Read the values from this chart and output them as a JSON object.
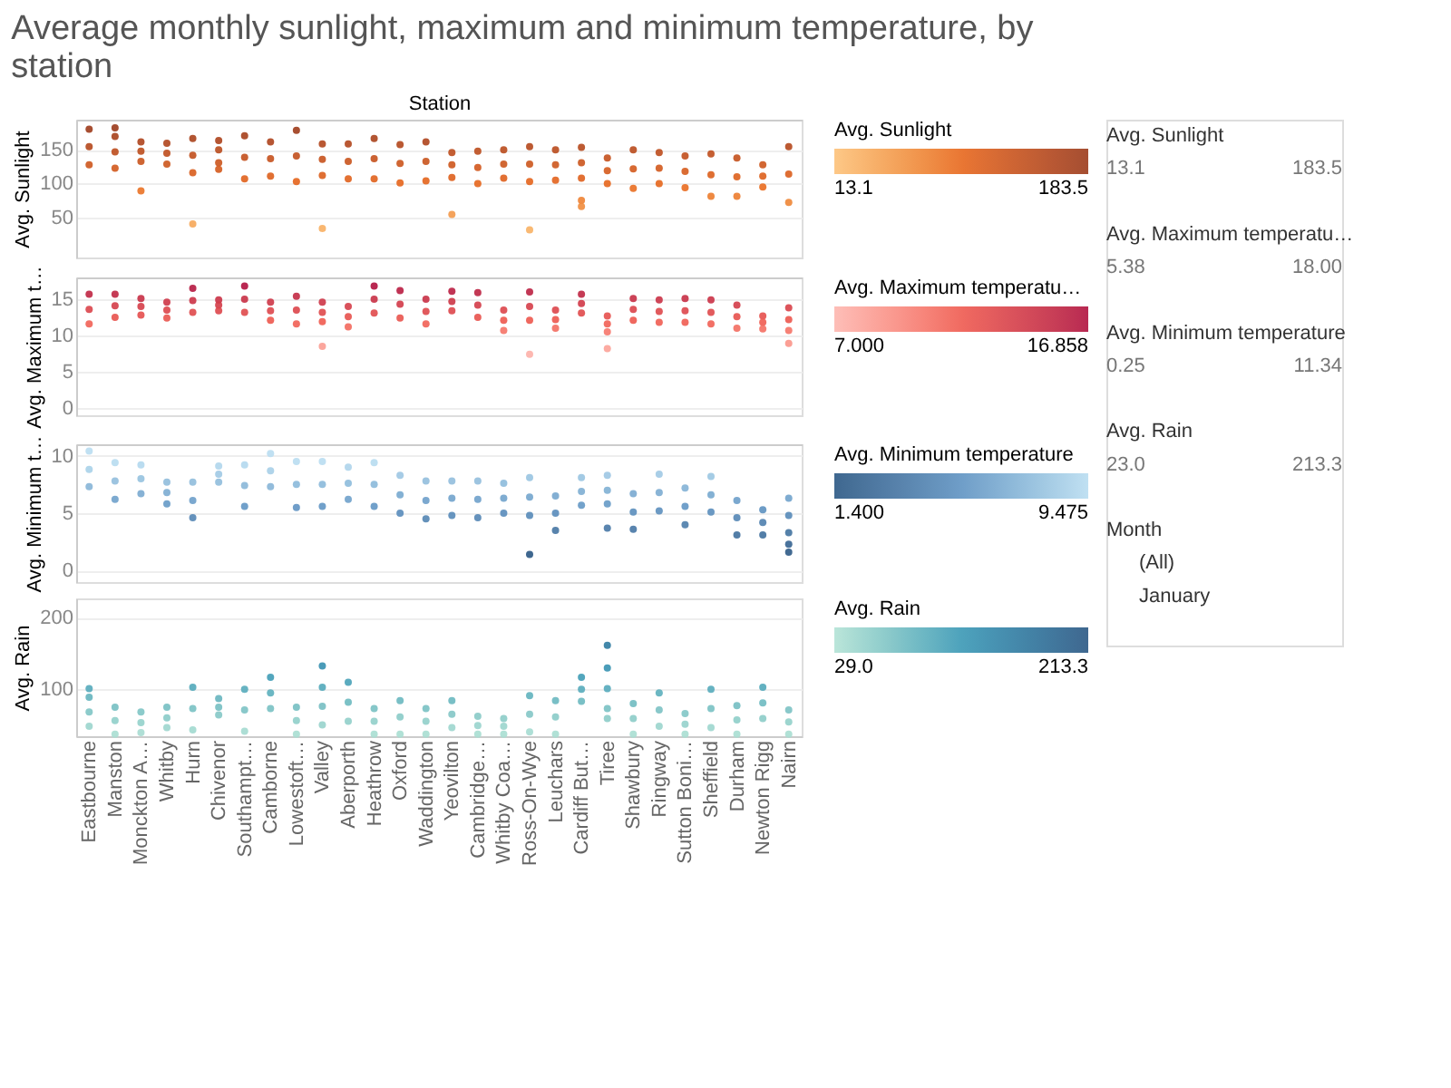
{
  "chart_data": [
    {
      "type": "scatter",
      "title": "Average monthly sunlight, maximum and minimum temperature, by station",
      "xlabel": "Station",
      "ylabel": "Avg. Sunlight",
      "clabel": "Avg. Sunlight",
      "tick_labels": "y",
      "grid": "y",
      "marker": "circle",
      "categories": [
        "Eastbourne",
        "Manston",
        "Monckton A…",
        "Whitby",
        "Hurn",
        "Chivenor",
        "Southampt…",
        "Camborne",
        "Lowestoft…",
        "Valley",
        "Aberporth",
        "Heathrow",
        "Oxford",
        "Waddington",
        "Yeovilton",
        "Cambridge…",
        "Whitby Coa…",
        "Ross-On-Wye",
        "Leuchars",
        "Cardiff But…",
        "Tiree",
        "Shawbury",
        "Ringway",
        "Sutton Boni…",
        "Sheffield",
        "Durham",
        "Newton Rigg",
        "Nairn"
      ],
      "series": [
        {
          "type": "scatter",
          "x": [
            "Eastbourne",
            "Eastbourne",
            "Eastbourne",
            "Manston",
            "Manston",
            "Manston",
            "Manston",
            "Monckton A…",
            "Monckton A…",
            "Monckton A…",
            "Monckton A…",
            "Whitby",
            "Whitby",
            "Whitby",
            "Hurn",
            "Hurn",
            "Hurn",
            "Hurn",
            "Chivenor",
            "Chivenor",
            "Chivenor",
            "Chivenor",
            "Southampt…",
            "Southampt…",
            "Southampt…",
            "Camborne",
            "Camborne",
            "Camborne",
            "Lowestoft…",
            "Lowestoft…",
            "Lowestoft…",
            "Valley",
            "Valley",
            "Valley",
            "Valley",
            "Aberporth",
            "Aberporth",
            "Aberporth",
            "Heathrow",
            "Heathrow",
            "Heathrow",
            "Oxford",
            "Oxford",
            "Oxford",
            "Waddington",
            "Waddington",
            "Waddington",
            "Yeovilton",
            "Yeovilton",
            "Yeovilton",
            "Yeovilton",
            "Cambridge…",
            "Cambridge…",
            "Cambridge…",
            "Whitby Coa…",
            "Whitby Coa…",
            "Whitby Coa…",
            "Ross-On-Wye",
            "Ross-On-Wye",
            "Ross-On-Wye",
            "Ross-On-Wye",
            "Leuchars",
            "Leuchars",
            "Leuchars",
            "Cardiff But…",
            "Cardiff But…",
            "Cardiff But…",
            "Cardiff But…",
            "Cardiff But…",
            "Tiree",
            "Tiree",
            "Tiree",
            "Shawbury",
            "Shawbury",
            "Shawbury",
            "Ringway",
            "Ringway",
            "Ringway",
            "Sutton Boni…",
            "Sutton Boni…",
            "Sutton Boni…",
            "Sheffield",
            "Sheffield",
            "Sheffield",
            "Durham",
            "Durham",
            "Durham",
            "Newton Rigg",
            "Newton Rigg",
            "Newton Rigg",
            "Nairn",
            "Nairn",
            "Nairn"
          ],
          "values": [
            181,
            155,
            128,
            183,
            170,
            147,
            123,
            162,
            148,
            133,
            89,
            160,
            145,
            129,
            167,
            142,
            116,
            40,
            164,
            150,
            131,
            121,
            171,
            139,
            107,
            162,
            137,
            111,
            179,
            141,
            103,
            159,
            136,
            112,
            33,
            159,
            133,
            107,
            167,
            137,
            107,
            158,
            130,
            101,
            162,
            133,
            104,
            146,
            128,
            109,
            54,
            148,
            124,
            100,
            150,
            129,
            108,
            155,
            129,
            103,
            31,
            150,
            128,
            105,
            154,
            131,
            108,
            75,
            66,
            138,
            119,
            100,
            150,
            122,
            93,
            146,
            123,
            100,
            141,
            118,
            94,
            144,
            113,
            81,
            138,
            110,
            81,
            128,
            111,
            95,
            155,
            114,
            72
          ]
        }
      ],
      "ylim": [
        -10,
        195
      ],
      "yticks": [
        50,
        100,
        150
      ],
      "clim": [
        13.1,
        183.5
      ],
      "cticks": [
        13.1,
        183.5
      ]
    },
    {
      "type": "scatter",
      "ylabel": "Avg. Maximum t…",
      "clabel": "Avg. Maximum temperatu…",
      "tick_labels": "y",
      "grid": "y",
      "marker": "circle",
      "categories": [
        "Eastbourne",
        "Manston",
        "Monckton A…",
        "Whitby",
        "Hurn",
        "Chivenor",
        "Southampt…",
        "Camborne",
        "Lowestoft…",
        "Valley",
        "Aberporth",
        "Heathrow",
        "Oxford",
        "Waddington",
        "Yeovilton",
        "Cambridge…",
        "Whitby Coa…",
        "Ross-On-Wye",
        "Leuchars",
        "Cardiff But…",
        "Tiree",
        "Shawbury",
        "Ringway",
        "Sutton Boni…",
        "Sheffield",
        "Durham",
        "Newton Rigg",
        "Nairn"
      ],
      "series": [
        {
          "type": "scatter",
          "x": [
            "Eastbourne",
            "Eastbourne",
            "Eastbourne",
            "Manston",
            "Manston",
            "Manston",
            "Monckton A…",
            "Monckton A…",
            "Monckton A…",
            "Whitby",
            "Whitby",
            "Whitby",
            "Hurn",
            "Hurn",
            "Hurn",
            "Chivenor",
            "Chivenor",
            "Chivenor",
            "Southampt…",
            "Southampt…",
            "Southampt…",
            "Camborne",
            "Camborne",
            "Camborne",
            "Lowestoft…",
            "Lowestoft…",
            "Lowestoft…",
            "Valley",
            "Valley",
            "Valley",
            "Valley",
            "Aberporth",
            "Aberporth",
            "Aberporth",
            "Heathrow",
            "Heathrow",
            "Heathrow",
            "Oxford",
            "Oxford",
            "Oxford",
            "Waddington",
            "Waddington",
            "Waddington",
            "Yeovilton",
            "Yeovilton",
            "Yeovilton",
            "Cambridge…",
            "Cambridge…",
            "Cambridge…",
            "Whitby Coa…",
            "Whitby Coa…",
            "Whitby Coa…",
            "Ross-On-Wye",
            "Ross-On-Wye",
            "Ross-On-Wye",
            "Ross-On-Wye",
            "Leuchars",
            "Leuchars",
            "Leuchars",
            "Cardiff But…",
            "Cardiff But…",
            "Cardiff But…",
            "Tiree",
            "Tiree",
            "Tiree",
            "Tiree",
            "Shawbury",
            "Shawbury",
            "Shawbury",
            "Ringway",
            "Ringway",
            "Ringway",
            "Sutton Boni…",
            "Sutton Boni…",
            "Sutton Boni…",
            "Sheffield",
            "Sheffield",
            "Sheffield",
            "Durham",
            "Durham",
            "Durham",
            "Newton Rigg",
            "Newton Rigg",
            "Newton Rigg",
            "Nairn",
            "Nairn",
            "Nairn",
            "Nairn"
          ],
          "values": [
            15.7,
            13.6,
            11.6,
            15.7,
            14.1,
            12.5,
            15.1,
            14.0,
            12.8,
            14.6,
            13.5,
            12.4,
            16.5,
            14.8,
            13.2,
            14.9,
            14.2,
            13.4,
            16.8,
            15.0,
            13.2,
            14.6,
            13.4,
            12.1,
            15.4,
            13.5,
            11.6,
            14.6,
            13.2,
            11.9,
            8.5,
            14.0,
            12.6,
            11.2,
            16.8,
            15.0,
            13.1,
            16.2,
            14.3,
            12.4,
            15.0,
            13.3,
            11.6,
            16.1,
            14.7,
            13.4,
            15.9,
            14.2,
            12.5,
            13.5,
            12.1,
            10.7,
            16.0,
            14.0,
            12.1,
            7.4,
            13.5,
            12.2,
            11.0,
            15.7,
            14.4,
            13.1,
            12.7,
            11.6,
            10.5,
            8.2,
            15.1,
            13.6,
            12.1,
            14.9,
            13.3,
            11.8,
            15.1,
            13.4,
            11.8,
            14.9,
            13.2,
            11.6,
            14.2,
            12.6,
            11.0,
            12.7,
            11.8,
            10.9,
            13.8,
            12.2,
            10.7,
            8.9
          ]
        }
      ],
      "ylim": [
        -1,
        18
      ],
      "yticks": [
        0,
        5,
        10,
        15
      ],
      "clim": [
        7,
        16.858
      ],
      "cticks": [
        {
          "value": 7,
          "label": "7.000"
        },
        {
          "value": 16.858,
          "label": "16.858"
        }
      ]
    },
    {
      "type": "scatter",
      "ylabel": "Avg. Minimum t…",
      "clabel": "Avg. Minimum temperature",
      "tick_labels": "y",
      "grid": "y",
      "marker": "circle",
      "categories": [
        "Eastbourne",
        "Manston",
        "Monckton A…",
        "Whitby",
        "Hurn",
        "Chivenor",
        "Southampt…",
        "Camborne",
        "Lowestoft…",
        "Valley",
        "Aberporth",
        "Heathrow",
        "Oxford",
        "Waddington",
        "Yeovilton",
        "Cambridge…",
        "Whitby Coa…",
        "Ross-On-Wye",
        "Leuchars",
        "Cardiff But…",
        "Tiree",
        "Shawbury",
        "Ringway",
        "Sutton Boni…",
        "Sheffield",
        "Durham",
        "Newton Rigg",
        "Nairn"
      ],
      "series": [
        {
          "type": "scatter",
          "x": [
            "Eastbourne",
            "Eastbourne",
            "Eastbourne",
            "Manston",
            "Manston",
            "Manston",
            "Monckton A…",
            "Monckton A…",
            "Monckton A…",
            "Whitby",
            "Whitby",
            "Whitby",
            "Hurn",
            "Hurn",
            "Hurn",
            "Chivenor",
            "Chivenor",
            "Chivenor",
            "Southampt…",
            "Southampt…",
            "Southampt…",
            "Camborne",
            "Camborne",
            "Camborne",
            "Lowestoft…",
            "Lowestoft…",
            "Lowestoft…",
            "Valley",
            "Valley",
            "Valley",
            "Aberporth",
            "Aberporth",
            "Aberporth",
            "Heathrow",
            "Heathrow",
            "Heathrow",
            "Oxford",
            "Oxford",
            "Oxford",
            "Waddington",
            "Waddington",
            "Waddington",
            "Yeovilton",
            "Yeovilton",
            "Yeovilton",
            "Cambridge…",
            "Cambridge…",
            "Cambridge…",
            "Whitby Coa…",
            "Whitby Coa…",
            "Whitby Coa…",
            "Ross-On-Wye",
            "Ross-On-Wye",
            "Ross-On-Wye",
            "Ross-On-Wye",
            "Leuchars",
            "Leuchars",
            "Leuchars",
            "Cardiff But…",
            "Cardiff But…",
            "Cardiff But…",
            "Tiree",
            "Tiree",
            "Tiree",
            "Tiree",
            "Shawbury",
            "Shawbury",
            "Shawbury",
            "Ringway",
            "Ringway",
            "Ringway",
            "Sutton Boni…",
            "Sutton Boni…",
            "Sutton Boni…",
            "Sheffield",
            "Sheffield",
            "Sheffield",
            "Durham",
            "Durham",
            "Durham",
            "Newton Rigg",
            "Newton Rigg",
            "Newton Rigg",
            "Nairn",
            "Nairn",
            "Nairn",
            "Nairn",
            "Nairn"
          ],
          "values": [
            10.4,
            8.8,
            7.3,
            9.4,
            7.8,
            6.2,
            9.2,
            8.0,
            6.7,
            7.7,
            6.8,
            5.8,
            7.7,
            6.1,
            4.6,
            9.1,
            8.4,
            7.7,
            9.2,
            7.4,
            5.6,
            10.2,
            8.7,
            7.3,
            9.5,
            7.5,
            5.5,
            9.5,
            7.5,
            5.6,
            9.0,
            7.6,
            6.2,
            9.4,
            7.5,
            5.6,
            8.3,
            6.6,
            5.0,
            7.8,
            6.1,
            4.5,
            7.8,
            6.3,
            4.8,
            7.8,
            6.2,
            4.6,
            7.6,
            6.3,
            5.0,
            8.1,
            6.4,
            4.8,
            1.4,
            6.5,
            5.0,
            3.5,
            8.1,
            6.9,
            5.7,
            8.3,
            7.0,
            5.8,
            3.7,
            6.7,
            5.1,
            3.6,
            8.4,
            6.8,
            5.2,
            7.2,
            5.6,
            4.0,
            8.2,
            6.6,
            5.1,
            6.1,
            4.6,
            3.1,
            5.3,
            4.2,
            3.1,
            6.3,
            4.8,
            3.3,
            2.3,
            1.6
          ]
        }
      ],
      "ylim": [
        -1,
        11
      ],
      "yticks": [
        0,
        5,
        10
      ],
      "clim": [
        1.4,
        9.475
      ],
      "cticks": [
        {
          "value": 1.4,
          "label": "1.400"
        },
        {
          "value": 9.475,
          "label": "9.475"
        }
      ]
    },
    {
      "type": "scatter",
      "ylabel": "Avg. Rain",
      "clabel": "Avg. Rain",
      "grid": "y",
      "marker": "circle",
      "categories": [
        "Eastbourne",
        "Manston",
        "Monckton A…",
        "Whitby",
        "Hurn",
        "Chivenor",
        "Southampt…",
        "Camborne",
        "Lowestoft…",
        "Valley",
        "Aberporth",
        "Heathrow",
        "Oxford",
        "Waddington",
        "Yeovilton",
        "Cambridge…",
        "Whitby Coa…",
        "Ross-On-Wye",
        "Leuchars",
        "Cardiff But…",
        "Tiree",
        "Shawbury",
        "Ringway",
        "Sutton Boni…",
        "Sheffield",
        "Durham",
        "Newton Rigg",
        "Nairn"
      ],
      "series": [
        {
          "type": "scatter",
          "x": [
            "Eastbourne",
            "Eastbourne",
            "Eastbourne",
            "Eastbourne",
            "Manston",
            "Manston",
            "Manston",
            "Monckton A…",
            "Monckton A…",
            "Monckton A…",
            "Whitby",
            "Whitby",
            "Whitby",
            "Hurn",
            "Hurn",
            "Hurn",
            "Chivenor",
            "Chivenor",
            "Chivenor",
            "Southampt…",
            "Southampt…",
            "Southampt…",
            "Camborne",
            "Camborne",
            "Camborne",
            "Lowestoft…",
            "Lowestoft…",
            "Lowestoft…",
            "Valley",
            "Valley",
            "Valley",
            "Valley",
            "Aberporth",
            "Aberporth",
            "Aberporth",
            "Heathrow",
            "Heathrow",
            "Heathrow",
            "Oxford",
            "Oxford",
            "Oxford",
            "Waddington",
            "Waddington",
            "Waddington",
            "Yeovilton",
            "Yeovilton",
            "Yeovilton",
            "Cambridge…",
            "Cambridge…",
            "Cambridge…",
            "Whitby Coa…",
            "Whitby Coa…",
            "Whitby Coa…",
            "Ross-On-Wye",
            "Ross-On-Wye",
            "Ross-On-Wye",
            "Leuchars",
            "Leuchars",
            "Leuchars",
            "Cardiff But…",
            "Cardiff But…",
            "Cardiff But…",
            "Tiree",
            "Tiree",
            "Tiree",
            "Tiree",
            "Tiree",
            "Shawbury",
            "Shawbury",
            "Shawbury",
            "Ringway",
            "Ringway",
            "Ringway",
            "Sutton Boni…",
            "Sutton Boni…",
            "Sutton Boni…",
            "Sheffield",
            "Sheffield",
            "Sheffield",
            "Durham",
            "Durham",
            "Durham",
            "Newton Rigg",
            "Newton Rigg",
            "Newton Rigg",
            "Nairn",
            "Nairn",
            "Nairn"
          ],
          "values": [
            100,
            88,
            67,
            47,
            74,
            55,
            36,
            67,
            52,
            38,
            74,
            59,
            45,
            102,
            72,
            42,
            86,
            74,
            63,
            99,
            70,
            40,
            116,
            94,
            72,
            74,
            55,
            36,
            132,
            102,
            75,
            49,
            109,
            81,
            54,
            72,
            54,
            36,
            83,
            60,
            36,
            72,
            54,
            36,
            83,
            64,
            45,
            61,
            48,
            36,
            58,
            47,
            36,
            90,
            64,
            39,
            83,
            60,
            36,
            116,
            99,
            82,
            161,
            129,
            100,
            72,
            58,
            79,
            58,
            36,
            94,
            70,
            47,
            65,
            50,
            36,
            99,
            72,
            45,
            76,
            56,
            36,
            102,
            80,
            58,
            70,
            53,
            36
          ]
        }
      ],
      "ylim": [
        33,
        227
      ],
      "yticks": [
        100,
        200
      ],
      "clim": [
        29,
        213.3
      ],
      "cticks": [
        {
          "value": 29,
          "label": "29.0"
        },
        213.3
      ]
    },
    {
      "type": "other",
      "annotations": [
        "Avg. Sunlight",
        "13.1",
        "183.5",
        "Avg. Maximum temperatu…",
        "5.38",
        "18.00",
        "Avg. Minimum temperature",
        "0.25",
        "11.34",
        "Avg. Rain",
        "23.0",
        "213.3",
        "Month",
        "(All)",
        "January"
      ]
    }
  ]
}
